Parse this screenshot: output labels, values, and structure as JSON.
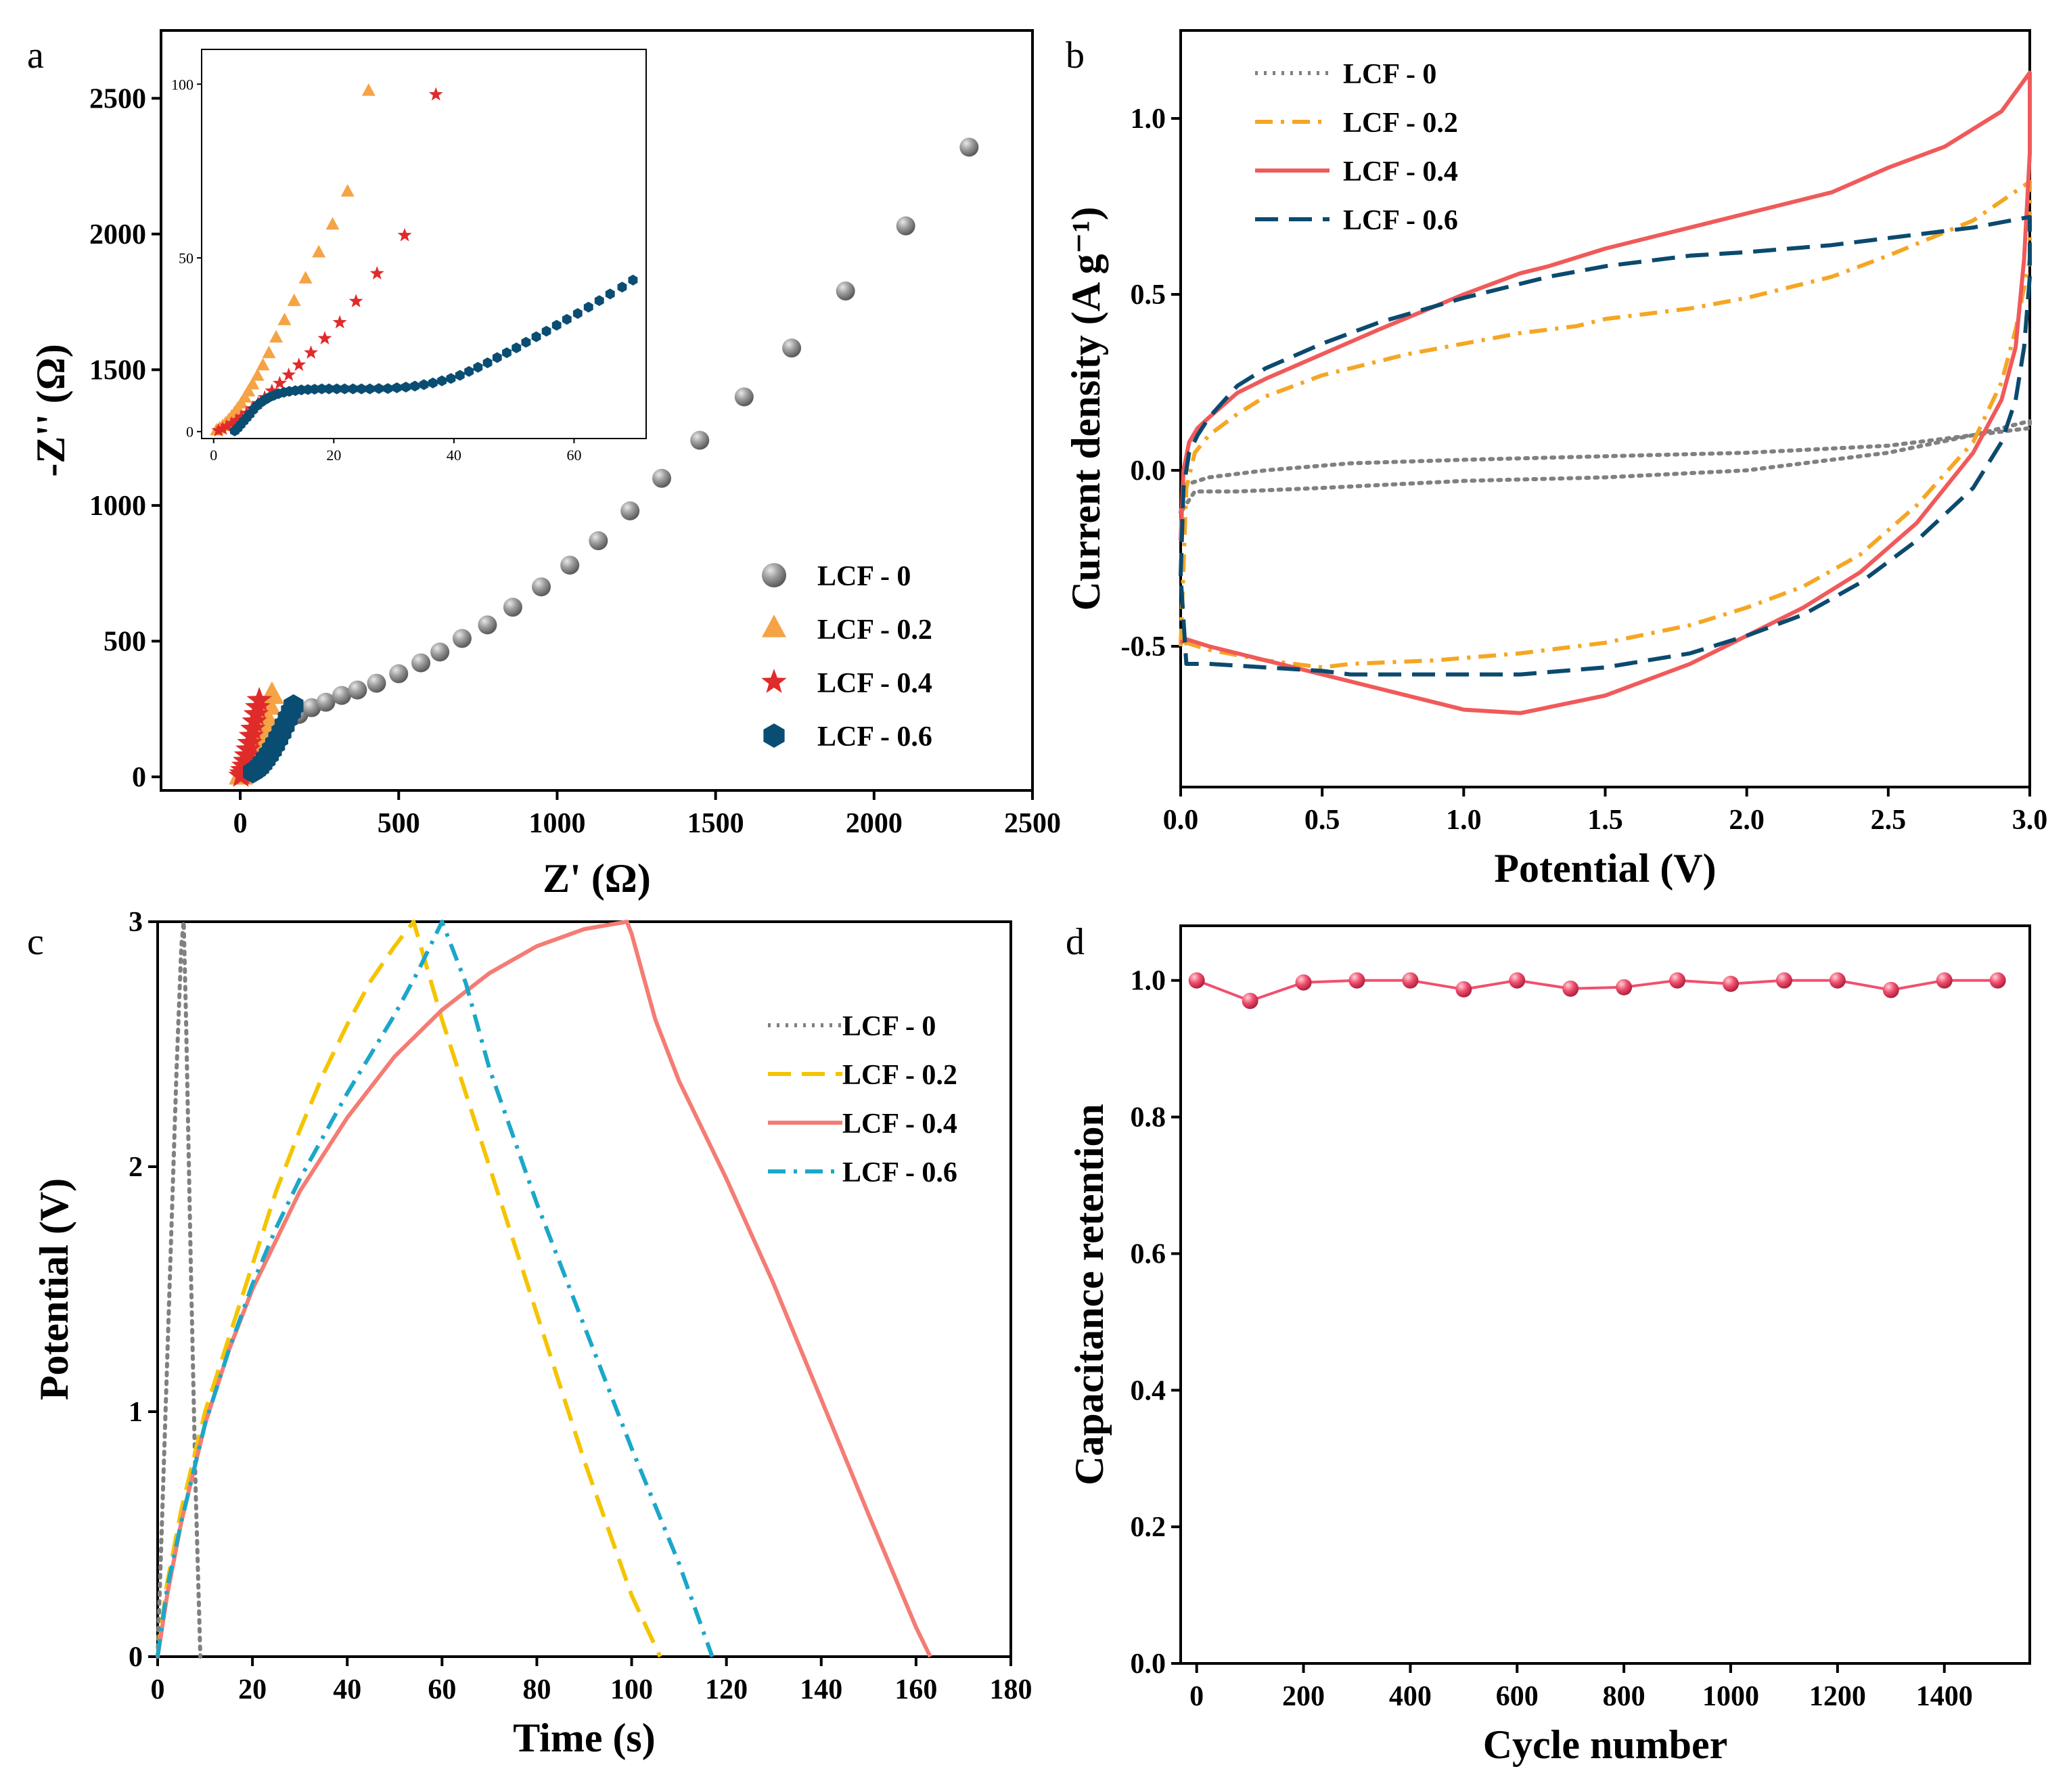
{
  "chart_data": [
    {
      "panel": "a",
      "type": "scatter",
      "title": "",
      "xlabel": "Z' (Ω)",
      "ylabel": "-Z'' (Ω)",
      "xlim": [
        -250,
        2500
      ],
      "ylim": [
        -50,
        2750
      ],
      "xticks": [
        0,
        500,
        1000,
        1500,
        2000,
        2500
      ],
      "yticks": [
        0,
        500,
        1000,
        1500,
        2000,
        2500
      ],
      "legend": "bottom-right",
      "series": [
        {
          "name": "LCF - 0",
          "marker": "sphere",
          "color": "#8c8c8c",
          "x": [
            8,
            20,
            35,
            55,
            80,
            110,
            145,
            185,
            225,
            270,
            320,
            370,
            430,
            500,
            570,
            630,
            700,
            780,
            860,
            950,
            1040,
            1130,
            1230,
            1330,
            1450,
            1590,
            1740,
            1910,
            2100,
            2300
          ],
          "y": [
            10,
            40,
            80,
            115,
            150,
            180,
            205,
            230,
            255,
            275,
            300,
            320,
            345,
            380,
            420,
            460,
            510,
            560,
            625,
            700,
            780,
            870,
            980,
            1100,
            1240,
            1400,
            1580,
            1790,
            2030,
            2320
          ]
        },
        {
          "name": "LCF - 0.2",
          "marker": "triangle",
          "color": "#f5a345",
          "x": [
            2,
            6,
            10,
            15,
            20,
            25,
            31,
            37,
            43,
            50,
            57,
            65,
            72,
            80,
            90,
            100
          ],
          "y": [
            3,
            12,
            22,
            35,
            48,
            62,
            78,
            95,
            112,
            132,
            152,
            175,
            198,
            222,
            260,
            300
          ]
        },
        {
          "name": "LCF - 0.4",
          "marker": "star",
          "color": "#e02b2b",
          "x": [
            2,
            5,
            8,
            12,
            16,
            20,
            25,
            30,
            35,
            40,
            45,
            50,
            55,
            60
          ],
          "y": [
            3,
            12,
            24,
            40,
            58,
            78,
            100,
            124,
            150,
            176,
            203,
            230,
            256,
            282
          ]
        },
        {
          "name": "LCF - 0.6",
          "marker": "hexagon",
          "color": "#0a4d73",
          "x": [
            40,
            50,
            60,
            70,
            80,
            90,
            100,
            110,
            120,
            130,
            140,
            150,
            160,
            168
          ],
          "y": [
            18,
            26,
            36,
            50,
            65,
            82,
            100,
            120,
            142,
            165,
            190,
            215,
            240,
            262
          ]
        }
      ],
      "inset": {
        "xlim": [
          -2,
          72
        ],
        "ylim": [
          -2,
          110
        ],
        "xticks": [
          0,
          20,
          40,
          60
        ],
        "yticks": [
          0,
          50,
          100
        ],
        "series": [
          {
            "name": "LCF - 0.2",
            "marker": "triangle",
            "color": "#f5a345",
            "x": [
              0.5,
              1,
              1.5,
              2,
              2.5,
              3,
              3.5,
              4,
              4.6,
              5.2,
              5.8,
              6.5,
              7.3,
              8.2,
              9.2,
              10.4,
              11.8,
              13.4,
              15.3,
              17.5,
              19.8,
              22.3,
              25.8
            ],
            "y": [
              0.3,
              0.8,
              1.5,
              2.3,
              3.2,
              4.2,
              5.3,
              6.5,
              8,
              9.7,
              11.5,
              13.5,
              16,
              19,
              22.5,
              27,
              32,
              37.5,
              44,
              51.5,
              59.5,
              69,
              98
            ]
          },
          {
            "name": "LCF - 0.4",
            "marker": "star",
            "color": "#e02b2b",
            "x": [
              0.8,
              1.5,
              2.2,
              3,
              3.8,
              4.6,
              5.5,
              6.4,
              7.4,
              8.5,
              9.7,
              11,
              12.5,
              14.2,
              16.2,
              18.5,
              21,
              23.7,
              27.2,
              31.8,
              37
            ],
            "y": [
              0.3,
              0.8,
              1.5,
              2.3,
              3.2,
              4.2,
              5.3,
              6.6,
              8.1,
              9.8,
              11.7,
              13.9,
              16.3,
              19.2,
              22.7,
              26.8,
              31.4,
              37.5,
              45.5,
              56.5,
              97
            ]
          },
          {
            "name": "LCF - 0.6",
            "marker": "hexagon",
            "color": "#0a4d73",
            "x": [
              3.5,
              4,
              4.5,
              5,
              5.5,
              6,
              6.6,
              7.2,
              7.8,
              8.5,
              9.2,
              10,
              10.8,
              11.7,
              12.6,
              13.6,
              14.6,
              15.7,
              16.8,
              18,
              19.2,
              20.5,
              21.8,
              23.2,
              24.6,
              26,
              27.5,
              29,
              30.5,
              32,
              33.5,
              35,
              36.5,
              38,
              39.5,
              41,
              42.5,
              44,
              45.6,
              47.2,
              48.8,
              50.4,
              52,
              53.7,
              55.4,
              57.1,
              58.8,
              60.6,
              62.4,
              64.2,
              66,
              68,
              69.8
            ],
            "y": [
              0.2,
              1,
              2,
              3,
              4,
              5,
              6.3,
              7.4,
              8.3,
              9.1,
              9.8,
              10.4,
              10.9,
              11.3,
              11.6,
              11.8,
              12,
              12.1,
              12.2,
              12.3,
              12.3,
              12.3,
              12.3,
              12.3,
              12.3,
              12.3,
              12.4,
              12.4,
              12.6,
              12.8,
              13.1,
              13.5,
              14,
              14.6,
              15.3,
              16.2,
              17.3,
              18.5,
              19.8,
              21.3,
              22.7,
              24.1,
              25.7,
              27.3,
              28.9,
              30.6,
              32.3,
              34,
              35.8,
              37.7,
              39.6,
              41.6,
              43.6
            ]
          }
        ]
      },
      "legend_entries": [
        "LCF - 0",
        "LCF - 0.2",
        "LCF - 0.4",
        "LCF - 0.6"
      ]
    },
    {
      "panel": "b",
      "type": "line",
      "title": "",
      "xlabel": "Potential (V)",
      "ylabel": "Current density (A g⁻¹)",
      "xlim": [
        0,
        3.0
      ],
      "ylim": [
        -0.9,
        1.25
      ],
      "xticks": [
        0.0,
        0.5,
        1.0,
        1.5,
        2.0,
        2.5,
        3.0
      ],
      "yticks": [
        -0.5,
        0.0,
        0.5,
        1.0
      ],
      "legend": "top-left",
      "series": [
        {
          "name": "LCF - 0",
          "style": "dotted",
          "color": "#808080",
          "x": [
            0,
            0.02,
            0.1,
            0.3,
            0.6,
            1.0,
            1.5,
            2.0,
            2.5,
            2.8,
            3.0,
            3.0,
            2.8,
            2.5,
            2.0,
            1.5,
            1.0,
            0.5,
            0.2,
            0.05,
            0
          ],
          "y": [
            -0.12,
            -0.04,
            -0.02,
            0.0,
            0.02,
            0.03,
            0.04,
            0.05,
            0.07,
            0.1,
            0.12,
            0.14,
            0.1,
            0.05,
            0.0,
            -0.02,
            -0.03,
            -0.05,
            -0.06,
            -0.06,
            -0.12
          ]
        },
        {
          "name": "LCF - 0.2",
          "style": "dashdot",
          "color": "#f5a623",
          "x": [
            0,
            0.02,
            0.05,
            0.1,
            0.2,
            0.3,
            0.5,
            0.8,
            1.0,
            1.2,
            1.4,
            1.5,
            1.8,
            2.0,
            2.3,
            2.5,
            2.8,
            3.0,
            3.0,
            2.95,
            2.9,
            2.8,
            2.6,
            2.4,
            2.2,
            2.0,
            1.8,
            1.5,
            1.2,
            0.9,
            0.6,
            0.5,
            0.3,
            0.1,
            0.02,
            0
          ],
          "y": [
            -0.5,
            -0.05,
            0.05,
            0.1,
            0.16,
            0.21,
            0.27,
            0.33,
            0.36,
            0.39,
            0.41,
            0.43,
            0.46,
            0.49,
            0.55,
            0.61,
            0.71,
            0.82,
            0.6,
            0.4,
            0.25,
            0.08,
            -0.1,
            -0.24,
            -0.33,
            -0.39,
            -0.44,
            -0.49,
            -0.52,
            -0.54,
            -0.55,
            -0.56,
            -0.54,
            -0.51,
            -0.49,
            -0.5
          ]
        },
        {
          "name": "LCF - 0.4",
          "style": "solid",
          "color": "#f05a5a",
          "x": [
            0,
            0.01,
            0.03,
            0.06,
            0.1,
            0.2,
            0.3,
            0.5,
            0.7,
            1.0,
            1.2,
            1.3,
            1.5,
            1.8,
            2.0,
            2.3,
            2.5,
            2.7,
            2.9,
            3.0,
            3.0,
            2.98,
            2.95,
            2.9,
            2.8,
            2.6,
            2.4,
            2.2,
            2.0,
            1.8,
            1.5,
            1.2,
            1.0,
            0.8,
            0.6,
            0.5,
            0.3,
            0.1,
            0.02,
            0
          ],
          "y": [
            -0.2,
            0.0,
            0.08,
            0.12,
            0.15,
            0.22,
            0.26,
            0.33,
            0.4,
            0.5,
            0.56,
            0.58,
            0.63,
            0.69,
            0.73,
            0.79,
            0.86,
            0.92,
            1.02,
            1.13,
            0.9,
            0.6,
            0.35,
            0.2,
            0.05,
            -0.15,
            -0.29,
            -0.39,
            -0.47,
            -0.55,
            -0.64,
            -0.69,
            -0.68,
            -0.64,
            -0.6,
            -0.58,
            -0.54,
            -0.5,
            -0.48,
            -0.49
          ]
        },
        {
          "name": "LCF - 0.6",
          "style": "dashed",
          "color": "#0b4a6e",
          "x": [
            0,
            0.01,
            0.03,
            0.06,
            0.1,
            0.2,
            0.3,
            0.5,
            0.7,
            1.0,
            1.3,
            1.5,
            1.8,
            2.0,
            2.3,
            2.5,
            2.8,
            3.0,
            3.0,
            2.98,
            2.95,
            2.9,
            2.8,
            2.6,
            2.4,
            2.2,
            2.0,
            1.8,
            1.5,
            1.2,
            1.0,
            0.8,
            0.6,
            0.5,
            0.3,
            0.1,
            0.02,
            0
          ],
          "y": [
            -0.3,
            -0.05,
            0.05,
            0.1,
            0.15,
            0.24,
            0.29,
            0.36,
            0.42,
            0.49,
            0.55,
            0.58,
            0.61,
            0.62,
            0.64,
            0.66,
            0.69,
            0.72,
            0.55,
            0.35,
            0.2,
            0.08,
            -0.05,
            -0.2,
            -0.32,
            -0.41,
            -0.47,
            -0.52,
            -0.56,
            -0.58,
            -0.58,
            -0.58,
            -0.58,
            -0.57,
            -0.56,
            -0.55,
            -0.55,
            -0.3
          ]
        }
      ],
      "legend_entries": [
        "LCF - 0",
        "LCF - 0.2",
        "LCF - 0.4",
        "LCF - 0.6"
      ]
    },
    {
      "panel": "c",
      "type": "line",
      "title": "",
      "xlabel": "Time (s)",
      "ylabel": "Potential (V)",
      "xlim": [
        0,
        180
      ],
      "ylim": [
        0,
        3
      ],
      "xticks": [
        0,
        20,
        40,
        60,
        80,
        100,
        120,
        140,
        160,
        180
      ],
      "yticks": [
        0,
        1,
        2,
        3
      ],
      "legend": "top-right",
      "series": [
        {
          "name": "LCF - 0",
          "style": "dotted",
          "color": "#808080",
          "x": [
            0,
            1,
            2,
            3,
            4,
            5,
            5.5,
            6,
            7,
            8,
            9
          ],
          "y": [
            0,
            0.6,
            1.2,
            1.8,
            2.4,
            2.9,
            3.0,
            2.6,
            1.6,
            0.7,
            0
          ]
        },
        {
          "name": "LCF - 0.2",
          "style": "dashed",
          "color": "#f5c400",
          "x": [
            0,
            2,
            5,
            10,
            15,
            20,
            25,
            30,
            35,
            40,
            45,
            50,
            54,
            60,
            70,
            80,
            90,
            100,
            106
          ],
          "y": [
            0,
            0.3,
            0.6,
            1.0,
            1.3,
            1.6,
            1.9,
            2.15,
            2.38,
            2.58,
            2.76,
            2.9,
            3.0,
            2.6,
            2.0,
            1.4,
            0.8,
            0.25,
            0
          ]
        },
        {
          "name": "LCF - 0.4",
          "style": "solid",
          "color": "#f47c74",
          "x": [
            0,
            2,
            5,
            10,
            15,
            20,
            30,
            40,
            50,
            60,
            70,
            80,
            90,
            99,
            100,
            105,
            110,
            120,
            130,
            140,
            150,
            160,
            163
          ],
          "y": [
            0,
            0.25,
            0.55,
            0.95,
            1.25,
            1.5,
            1.9,
            2.2,
            2.45,
            2.64,
            2.79,
            2.9,
            2.97,
            3.0,
            2.95,
            2.6,
            2.35,
            1.95,
            1.52,
            1.05,
            0.58,
            0.12,
            0
          ]
        },
        {
          "name": "LCF - 0.6",
          "style": "dashdot",
          "color": "#1ba7c9",
          "x": [
            0,
            2,
            5,
            10,
            15,
            20,
            25,
            30,
            40,
            50,
            55,
            60,
            65,
            70,
            80,
            90,
            100,
            110,
            117
          ],
          "y": [
            0,
            0.28,
            0.55,
            0.95,
            1.25,
            1.52,
            1.75,
            1.95,
            2.3,
            2.62,
            2.8,
            3.0,
            2.75,
            2.4,
            1.85,
            1.35,
            0.85,
            0.38,
            0
          ]
        }
      ],
      "legend_entries": [
        "LCF - 0",
        "LCF - 0.2",
        "LCF - 0.4",
        "LCF - 0.6"
      ]
    },
    {
      "panel": "d",
      "type": "line",
      "title": "",
      "xlabel": "Cycle number",
      "ylabel": "Capacitance retention",
      "xlim": [
        -30,
        1560
      ],
      "ylim": [
        0,
        1.08
      ],
      "xticks": [
        0,
        200,
        400,
        600,
        800,
        1000,
        1200,
        1400
      ],
      "yticks": [
        0.0,
        0.2,
        0.4,
        0.6,
        0.8,
        1.0
      ],
      "color": "#f0506e",
      "x": [
        0,
        100,
        200,
        300,
        400,
        500,
        600,
        700,
        800,
        900,
        1000,
        1100,
        1200,
        1300,
        1400,
        1500
      ],
      "y": [
        1.0,
        0.97,
        0.997,
        1.0,
        1.0,
        0.987,
        1.0,
        0.988,
        0.99,
        1.0,
        0.995,
        1.0,
        1.0,
        0.986,
        1.0,
        1.0
      ]
    }
  ]
}
